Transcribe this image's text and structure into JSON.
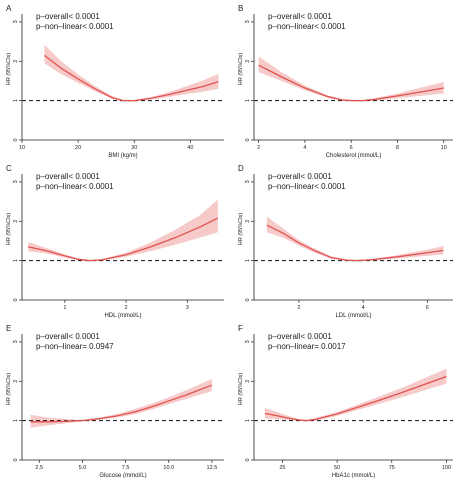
{
  "colors": {
    "curve": "#e0524f",
    "band": "#f4b3b3",
    "reference_line": "#111111",
    "axis": "#222222"
  },
  "chart_data": [
    {
      "panel": "A",
      "type": "line",
      "p_overall": "p–overall< 0.0001",
      "p_nonlinear": "p–non–linear< 0.0001",
      "xlabel": "BMI (kg/m)",
      "ylabel": "HR (95%CIs)",
      "xlim": [
        10,
        46
      ],
      "ylim": [
        0,
        3.2
      ],
      "xticks": [
        10,
        20,
        30,
        40
      ],
      "yticks": [
        0,
        1,
        2,
        3
      ],
      "reference_y": 1,
      "grid": false,
      "x": [
        14,
        17,
        20,
        23,
        26,
        28,
        30,
        33,
        36,
        39,
        42,
        45
      ],
      "y": [
        2.15,
        1.82,
        1.55,
        1.3,
        1.08,
        1.0,
        1.0,
        1.06,
        1.15,
        1.25,
        1.35,
        1.48
      ],
      "lower": [
        1.95,
        1.67,
        1.45,
        1.24,
        1.05,
        0.98,
        0.98,
        1.03,
        1.09,
        1.16,
        1.22,
        1.3
      ],
      "upper": [
        2.42,
        2.0,
        1.67,
        1.37,
        1.12,
        1.02,
        1.02,
        1.09,
        1.21,
        1.35,
        1.5,
        1.68
      ]
    },
    {
      "panel": "B",
      "type": "line",
      "p_overall": "p–overall< 0.0001",
      "p_nonlinear": "p–non–linear< 0.0001",
      "xlabel": "Cholesterol (mmol/L)",
      "ylabel": "HR (95%CIs)",
      "xlim": [
        1.8,
        10.4
      ],
      "ylim": [
        0,
        3.2
      ],
      "xticks": [
        2,
        4,
        6,
        8,
        10
      ],
      "yticks": [
        0,
        1,
        2,
        3
      ],
      "reference_y": 1,
      "grid": false,
      "x": [
        2,
        3,
        4,
        5,
        5.6,
        6,
        6.5,
        7,
        8,
        9,
        10
      ],
      "y": [
        1.9,
        1.6,
        1.32,
        1.1,
        1.02,
        1.0,
        1.0,
        1.03,
        1.12,
        1.22,
        1.32
      ],
      "lower": [
        1.72,
        1.5,
        1.26,
        1.07,
        1.0,
        0.98,
        0.98,
        1.0,
        1.06,
        1.12,
        1.18
      ],
      "upper": [
        2.12,
        1.72,
        1.38,
        1.13,
        1.04,
        1.02,
        1.02,
        1.06,
        1.18,
        1.33,
        1.47
      ]
    },
    {
      "panel": "C",
      "type": "line",
      "p_overall": "p–overall< 0.0001",
      "p_nonlinear": "p–non–linear< 0.0001",
      "xlabel": "HDL (mmol/L)",
      "ylabel": "HR (95%CIs)",
      "xlim": [
        0.3,
        3.6
      ],
      "ylim": [
        0,
        3.2
      ],
      "xticks": [
        1,
        2,
        3
      ],
      "yticks": [
        0,
        1,
        2,
        3
      ],
      "reference_y": 1,
      "grid": false,
      "x": [
        0.4,
        0.7,
        1.0,
        1.2,
        1.4,
        1.6,
        2.0,
        2.4,
        2.8,
        3.2,
        3.5
      ],
      "y": [
        1.35,
        1.25,
        1.12,
        1.04,
        1.0,
        1.02,
        1.15,
        1.35,
        1.58,
        1.85,
        2.08
      ],
      "lower": [
        1.24,
        1.18,
        1.08,
        1.02,
        0.98,
        1.0,
        1.1,
        1.24,
        1.4,
        1.58,
        1.72
      ],
      "upper": [
        1.47,
        1.32,
        1.16,
        1.06,
        1.02,
        1.04,
        1.2,
        1.46,
        1.78,
        2.15,
        2.55
      ]
    },
    {
      "panel": "D",
      "type": "line",
      "p_overall": "p–overall< 0.0001",
      "p_nonlinear": "p–non–linear< 0.0001",
      "xlabel": "LDL (mmol/L)",
      "ylabel": "HR (95%CIs)",
      "xlim": [
        0.6,
        6.8
      ],
      "ylim": [
        0,
        3.2
      ],
      "xticks": [
        2,
        4,
        6
      ],
      "yticks": [
        0,
        1,
        2,
        3
      ],
      "reference_y": 1,
      "grid": false,
      "x": [
        1,
        1.5,
        2,
        2.5,
        3,
        3.5,
        3.8,
        4.2,
        5,
        6,
        6.5
      ],
      "y": [
        1.9,
        1.7,
        1.45,
        1.25,
        1.08,
        1.01,
        1.0,
        1.02,
        1.09,
        1.2,
        1.26
      ],
      "lower": [
        1.72,
        1.58,
        1.38,
        1.2,
        1.05,
        0.99,
        0.98,
        1.0,
        1.05,
        1.12,
        1.16
      ],
      "upper": [
        2.12,
        1.82,
        1.52,
        1.3,
        1.11,
        1.03,
        1.02,
        1.04,
        1.13,
        1.28,
        1.37
      ]
    },
    {
      "panel": "E",
      "type": "line",
      "p_overall": "p–overall< 0.0001",
      "p_nonlinear": "p–non–linear= 0.0947",
      "xlabel": "Glucose (mmol/L)",
      "ylabel": "HR (95%CIs)",
      "xlim": [
        1.5,
        13.2
      ],
      "ylim": [
        0,
        3.2
      ],
      "xticks": [
        2.5,
        5.0,
        7.5,
        10.0,
        12.5
      ],
      "xticklabels": [
        "2.5",
        "5.0",
        "7.5",
        "10.0",
        "12.5"
      ],
      "yticks": [
        0,
        1,
        2,
        3
      ],
      "reference_y": 1,
      "grid": false,
      "x": [
        2,
        3,
        4,
        5,
        6,
        7,
        8,
        9,
        10,
        11,
        12.5
      ],
      "y": [
        0.97,
        0.97,
        0.98,
        1.0,
        1.05,
        1.12,
        1.22,
        1.35,
        1.5,
        1.65,
        1.9
      ],
      "lower": [
        0.82,
        0.88,
        0.93,
        0.98,
        1.02,
        1.08,
        1.16,
        1.28,
        1.42,
        1.55,
        1.75
      ],
      "upper": [
        1.15,
        1.08,
        1.04,
        1.02,
        1.08,
        1.17,
        1.29,
        1.43,
        1.59,
        1.77,
        2.06
      ]
    },
    {
      "panel": "F",
      "type": "line",
      "p_overall": "p–overall< 0.0001",
      "p_nonlinear": "p–non–linear= 0.0017",
      "xlabel": "HbA1c (mmol/L)",
      "ylabel": "HR (95%CIs)",
      "xlim": [
        12,
        103
      ],
      "ylim": [
        0,
        3.2
      ],
      "xticks": [
        25,
        50,
        75,
        100
      ],
      "yticks": [
        0,
        1,
        2,
        3
      ],
      "reference_y": 1,
      "grid": false,
      "x": [
        17,
        22,
        27,
        32,
        36,
        40,
        50,
        60,
        70,
        80,
        90,
        100
      ],
      "y": [
        1.18,
        1.13,
        1.07,
        1.02,
        1.0,
        1.03,
        1.17,
        1.35,
        1.53,
        1.72,
        1.92,
        2.12
      ],
      "lower": [
        1.05,
        1.04,
        1.02,
        1.0,
        0.98,
        1.0,
        1.12,
        1.28,
        1.44,
        1.6,
        1.77,
        1.94
      ],
      "upper": [
        1.32,
        1.23,
        1.13,
        1.05,
        1.02,
        1.06,
        1.22,
        1.42,
        1.63,
        1.84,
        2.08,
        2.32
      ]
    }
  ]
}
